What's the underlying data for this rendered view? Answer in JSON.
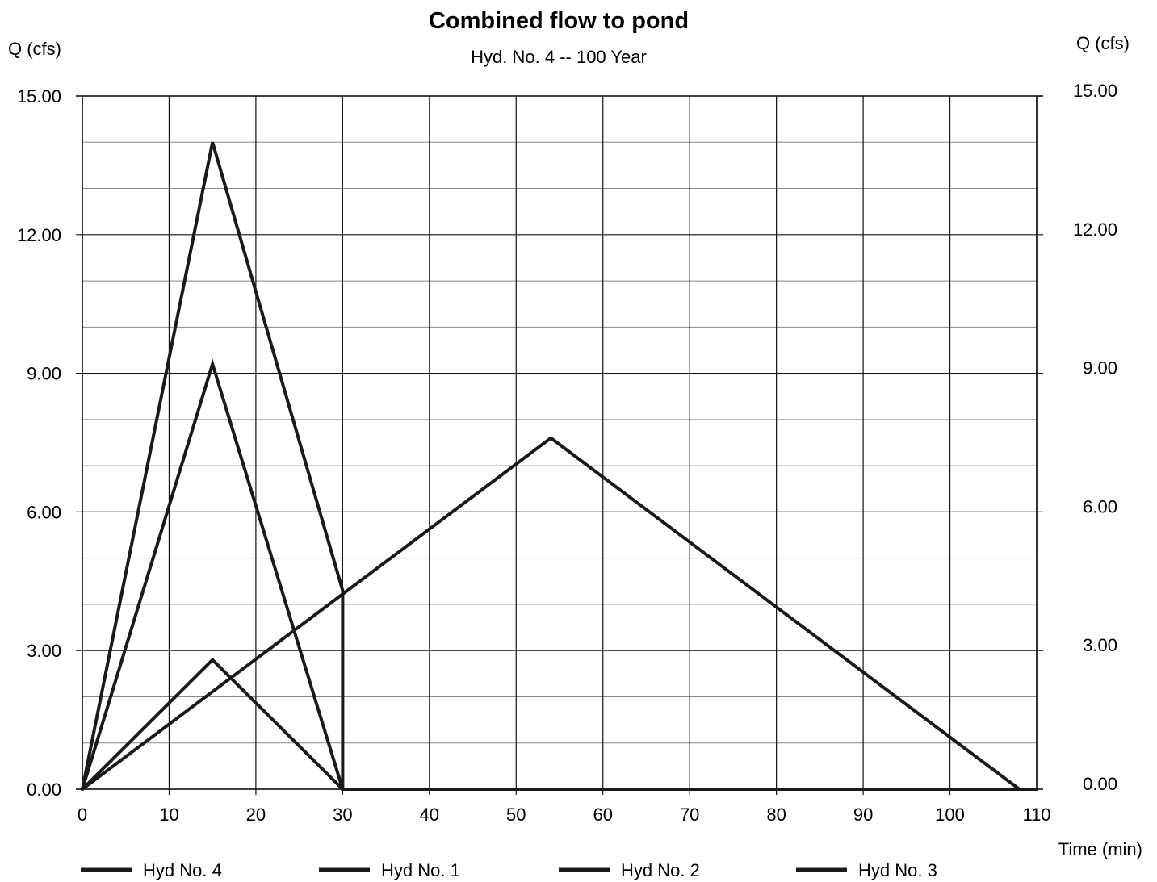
{
  "chart_data": {
    "type": "line",
    "title": "Combined flow to pond",
    "subtitle": "Hyd. No. 4 -- 100 Year",
    "ylabel_left": "Q (cfs)",
    "ylabel_right": "Q (cfs)",
    "xlabel": "Time (min)",
    "xlim": [
      0,
      110
    ],
    "ylim": [
      0,
      15
    ],
    "x_ticks": [
      "0",
      "10",
      "20",
      "30",
      "40",
      "50",
      "60",
      "70",
      "80",
      "90",
      "100",
      "110"
    ],
    "y_ticks_left": [
      "0.00",
      "3.00",
      "6.00",
      "9.00",
      "12.00",
      "15.00"
    ],
    "y_ticks_right": [
      "0.00",
      "3.00",
      "6.00",
      "9.00",
      "12.00",
      "15.00"
    ],
    "grid": true,
    "legend_position": "bottom",
    "line_color": "#1a1a1a",
    "series": [
      {
        "name": "Hyd No. 4",
        "x": [
          0,
          15,
          30,
          30,
          110
        ],
        "y": [
          0,
          14.0,
          4.3,
          0,
          0
        ]
      },
      {
        "name": "Hyd No. 1",
        "x": [
          0,
          15,
          30,
          110
        ],
        "y": [
          0,
          9.2,
          0,
          0
        ]
      },
      {
        "name": "Hyd No. 2",
        "x": [
          0,
          15,
          30,
          110
        ],
        "y": [
          0,
          2.8,
          0,
          0
        ]
      },
      {
        "name": "Hyd No. 3",
        "x": [
          0,
          54,
          108,
          110
        ],
        "y": [
          0,
          7.6,
          0,
          0
        ]
      }
    ]
  }
}
